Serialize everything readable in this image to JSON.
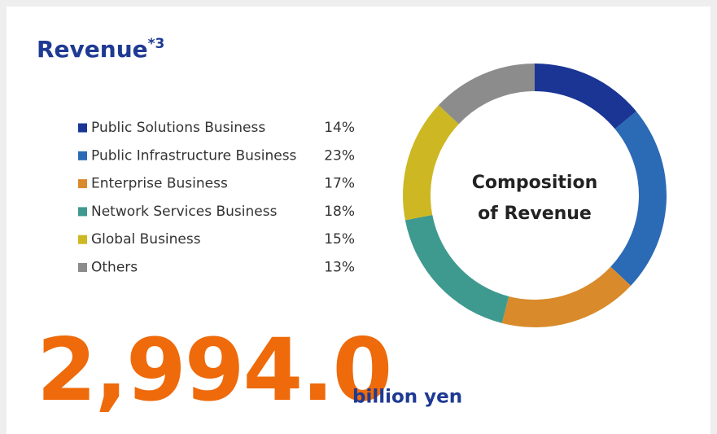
{
  "chart_data": {
    "type": "donut",
    "title": "Revenue",
    "title_note": "*3",
    "center_label": [
      "Composition",
      "of Revenue"
    ],
    "categories": [
      "Public Solutions Business",
      "Public Infrastructure Business",
      "Enterprise Business",
      "Network Services Business",
      "Global Business",
      "Others"
    ],
    "values": [
      14,
      23,
      17,
      18,
      15,
      13
    ],
    "value_labels": [
      "14%",
      "23%",
      "17%",
      "18%",
      "15%",
      "13%"
    ],
    "colors": [
      "#1a3594",
      "#2b6ab5",
      "#d98a2b",
      "#3e9a8e",
      "#cdb823",
      "#8c8c8c"
    ],
    "total": "2,994.0",
    "total_unit": "billion yen"
  }
}
